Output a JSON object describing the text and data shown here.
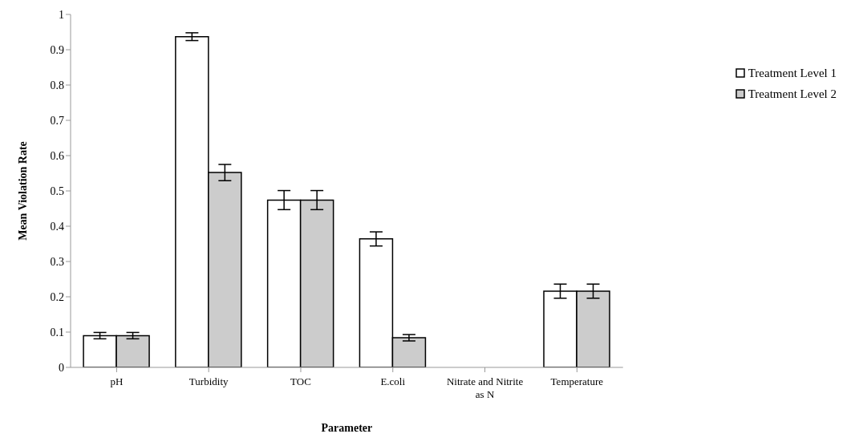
{
  "chart_data": {
    "type": "bar",
    "xlabel": "Parameter",
    "ylabel": "Mean Violation Rate",
    "categories": [
      "pH",
      "Turbidity",
      "TOC",
      "E.coli",
      "Nitrate and Nitrite as N",
      "Temperature"
    ],
    "series": [
      {
        "name": "Treatment Level 1",
        "color": "#ffffff",
        "values": [
          0.09,
          0.937,
          0.474,
          0.364,
          0,
          0.216
        ],
        "errors": [
          0.009,
          0.011,
          0.027,
          0.02,
          null,
          0.02
        ]
      },
      {
        "name": "Treatment Level 2",
        "color": "#cccccc",
        "values": [
          0.09,
          0.552,
          0.474,
          0.084,
          0,
          0.216
        ],
        "errors": [
          0.009,
          0.023,
          0.027,
          0.009,
          null,
          0.02
        ]
      }
    ],
    "ylim": [
      0,
      1
    ],
    "yticks": [
      0,
      0.1,
      0.2,
      0.3,
      0.4,
      0.5,
      0.6,
      0.7,
      0.8,
      0.9,
      1
    ],
    "grid": false,
    "legend": "top right"
  }
}
